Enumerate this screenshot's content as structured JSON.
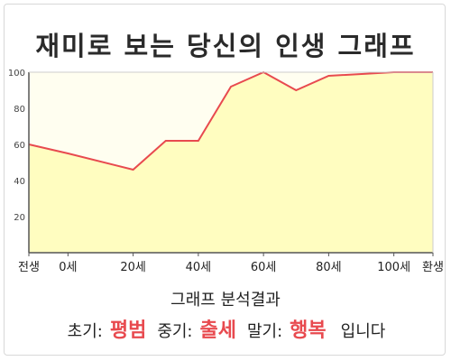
{
  "title": "재미로 보는 당신의 인생 그래프",
  "chart_data": {
    "type": "area",
    "x_tick_labels": [
      "전생",
      "0세",
      "20세",
      "40세",
      "60세",
      "80세",
      "100세",
      "환생"
    ],
    "y_ticks": [
      20,
      40,
      60,
      80,
      100
    ],
    "ylim": [
      0,
      100
    ],
    "grid": false,
    "points": [
      {
        "x": "전생",
        "y": 60
      },
      {
        "x": "0세",
        "y": 55
      },
      {
        "x": "20세",
        "y": 46
      },
      {
        "x": "30세",
        "y": 62
      },
      {
        "x": "40세",
        "y": 62
      },
      {
        "x": "50세",
        "y": 92
      },
      {
        "x": "60세",
        "y": 100
      },
      {
        "x": "70세",
        "y": 90
      },
      {
        "x": "80세",
        "y": 98
      },
      {
        "x": "100세",
        "y": 100
      },
      {
        "x": "환생",
        "y": 100
      }
    ],
    "colors": {
      "line": "#e84a4f",
      "fill": "#fffdc0",
      "plot_bg": "#fffef0",
      "axis": "#555555"
    }
  },
  "summary": {
    "heading": "그래프 분석결과",
    "early_label": "초기:",
    "early_value": "평범",
    "middle_label": "중기:",
    "middle_value": "출세",
    "late_label": "말기:",
    "late_value": "행복",
    "suffix": "입니다"
  }
}
